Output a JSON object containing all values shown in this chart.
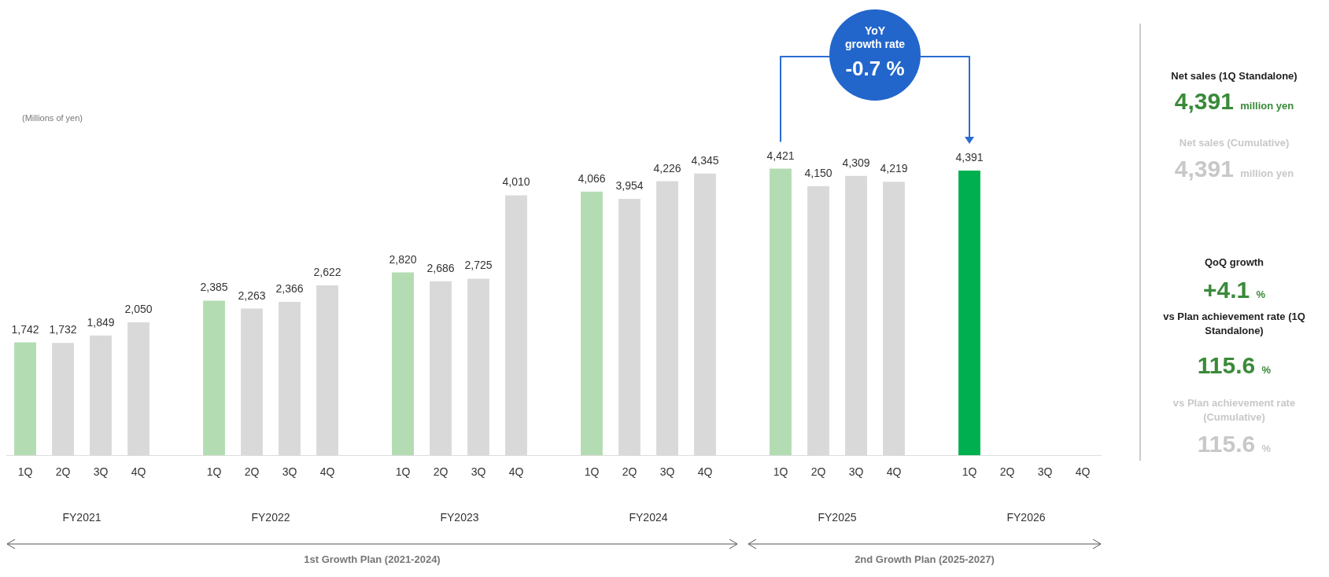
{
  "chart_data": [
    {
      "type": "bar",
      "ylabel": "(Millions of yen)",
      "categories": [
        "1Q",
        "2Q",
        "3Q",
        "4Q",
        null,
        "1Q",
        "2Q",
        "3Q",
        "4Q",
        null,
        "1Q",
        "2Q",
        "3Q",
        "4Q",
        null,
        "1Q",
        "2Q",
        "3Q",
        "4Q",
        null,
        "1Q",
        "2Q",
        "3Q",
        "4Q",
        null,
        "1Q",
        "2Q",
        "3Q",
        "4Q"
      ],
      "values": [
        1742,
        1732,
        1849,
        2050,
        null,
        2385,
        2263,
        2366,
        2622,
        null,
        2820,
        2686,
        2725,
        4010,
        null,
        4066,
        3954,
        4226,
        4345,
        null,
        4421,
        4150,
        4309,
        4219,
        null,
        4391,
        null,
        null,
        null
      ],
      "colors": [
        "#b3dcb3",
        "#d9d9d9",
        "#d9d9d9",
        "#d9d9d9",
        null,
        "#b3dcb3",
        "#d9d9d9",
        "#d9d9d9",
        "#d9d9d9",
        null,
        "#b3dcb3",
        "#d9d9d9",
        "#d9d9d9",
        "#d9d9d9",
        null,
        "#b3dcb3",
        "#d9d9d9",
        "#d9d9d9",
        "#d9d9d9",
        null,
        "#b3dcb3",
        "#d9d9d9",
        "#d9d9d9",
        "#d9d9d9",
        null,
        "#00b050",
        "#d9d9d9",
        "#d9d9d9",
        "#d9d9d9"
      ],
      "value_labels": [
        "1,742",
        "1,732",
        "1,849",
        "2,050",
        null,
        "2,385",
        "2,263",
        "2,366",
        "2,622",
        null,
        "2,820",
        "2,686",
        "2,725",
        "4,010",
        null,
        "4,066",
        "3,954",
        "4,226",
        "4,345",
        null,
        "4,421",
        "4,150",
        "4,309",
        "4,219",
        null,
        "4,391",
        null,
        null,
        null
      ],
      "tick_labels": "x",
      "grid": false,
      "legend": false,
      "annotations": [
        "FY2021",
        "FY2022",
        "FY2023",
        "FY2024",
        "FY2025",
        "FY2026",
        "1st Growth Plan (2021-2024)",
        "2nd Growth Plan (2025-2027)",
        "YoY growth rate -0.7 %"
      ]
    },
    {
      "type": "other",
      "annotations": [
        "Net sales (1Q Standalone)",
        "4,391 million yen",
        "Net sales (Cumulative)",
        "4,391 million yen",
        "QoQ growth",
        "+4.1 %",
        "vs Plan achievement rate (1Q Standalone)",
        "115.6 %",
        "vs Plan achievement rate (Cumulative)",
        "115.6 %"
      ]
    }
  ]
}
